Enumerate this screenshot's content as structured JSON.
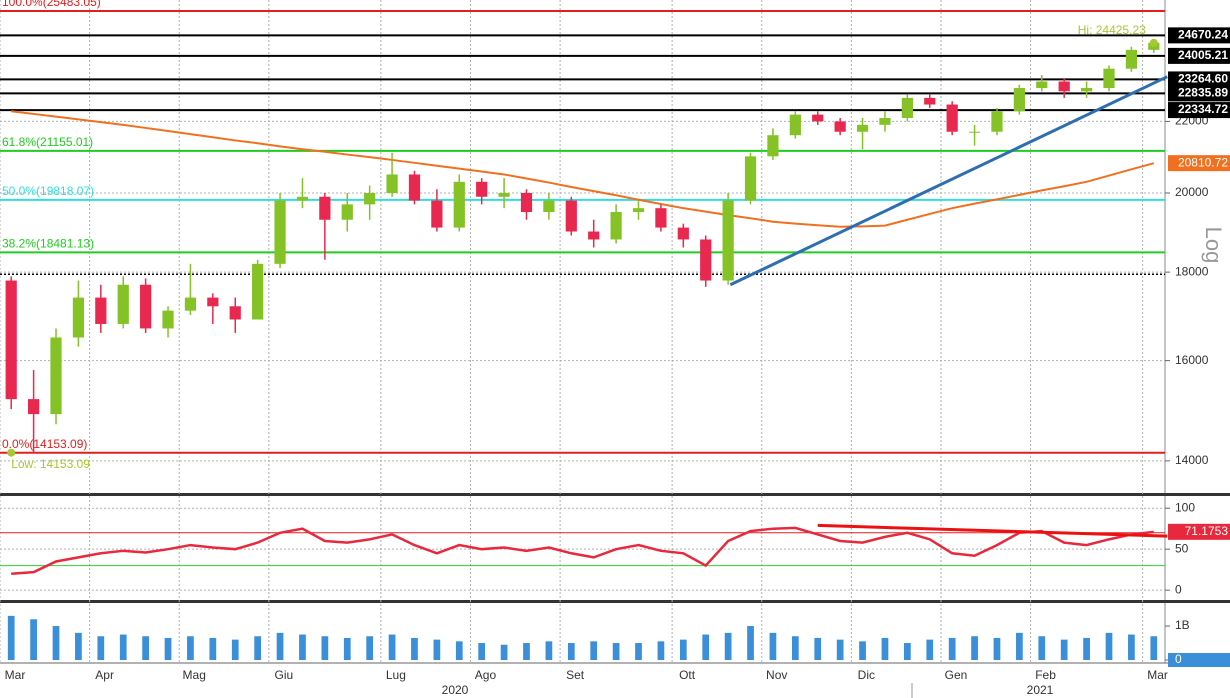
{
  "chart_data": [
    {
      "type": "candlestick",
      "log_scale": true,
      "grid": true,
      "axis_label": "Log",
      "up_color": "#84c225",
      "down_color": "#e8284f",
      "open": [
        17800,
        15200,
        14900,
        16500,
        17400,
        16800,
        17700,
        16700,
        17100,
        17400,
        17200,
        16900,
        18200,
        19800,
        19900,
        19300,
        19700,
        20000,
        20500,
        19800,
        19100,
        20300,
        19900,
        20000,
        19500,
        19800,
        19000,
        18800,
        19500,
        19600,
        19100,
        18800,
        17800,
        19800,
        21000,
        21600,
        22200,
        22000,
        21700,
        21900,
        22100,
        22700,
        22500,
        21700,
        21700,
        22300,
        23000,
        23200,
        22900,
        23000,
        23600,
        24200
      ],
      "high": [
        17900,
        15800,
        16700,
        17800,
        17700,
        17900,
        17850,
        17200,
        18200,
        17500,
        17400,
        18300,
        20000,
        20400,
        20000,
        20000,
        20200,
        21100,
        20600,
        20100,
        20500,
        20400,
        20400,
        20100,
        20000,
        19900,
        19300,
        19700,
        19800,
        19700,
        19200,
        18900,
        20000,
        21100,
        21800,
        22300,
        22300,
        22100,
        22100,
        22300,
        22800,
        22800,
        22600,
        21900,
        22400,
        23100,
        23400,
        23300,
        23200,
        23700,
        24300,
        24450
      ],
      "low": [
        15000,
        14153,
        14700,
        16300,
        16600,
        16700,
        16600,
        16500,
        17000,
        16800,
        16600,
        16900,
        18100,
        19600,
        18300,
        19000,
        19300,
        19900,
        19700,
        19000,
        19000,
        19700,
        19600,
        19300,
        19300,
        18900,
        18600,
        18700,
        19300,
        19000,
        18600,
        17650,
        17700,
        19700,
        20900,
        21500,
        21900,
        21600,
        21200,
        21700,
        22000,
        22400,
        21600,
        21300,
        21600,
        22200,
        22900,
        22700,
        22700,
        22900,
        23500,
        24100
      ],
      "close": [
        15200,
        14900,
        16500,
        17400,
        16800,
        17700,
        16700,
        17100,
        17400,
        17200,
        16900,
        18200,
        19800,
        19900,
        19300,
        19700,
        20000,
        20500,
        19800,
        19100,
        20300,
        19900,
        20000,
        19500,
        19800,
        19000,
        18800,
        19500,
        19600,
        19100,
        18800,
        17800,
        19800,
        21000,
        21600,
        22200,
        22000,
        21700,
        21900,
        22100,
        22700,
        22500,
        21700,
        21700,
        22300,
        23000,
        23200,
        22900,
        23000,
        23600,
        24200,
        24425
      ],
      "ylim": [
        13414,
        25860
      ],
      "yticks": [
        14000,
        16000,
        18000,
        20000,
        22000
      ],
      "levels": [
        {
          "value": 25483.05,
          "label": "100.0%(25483.05)",
          "color": "#e02020",
          "label_side": "left"
        },
        {
          "value": 24670.24,
          "label": "24670.24",
          "color": "#000000",
          "label_side": "right"
        },
        {
          "value": 24005.21,
          "label": "24005.21",
          "color": "#000000",
          "label_side": "right"
        },
        {
          "value": 23264.6,
          "label": "23264.60",
          "color": "#000000",
          "label_side": "right"
        },
        {
          "value": 22835.89,
          "label": "22835.89",
          "color": "#000000",
          "label_side": "right"
        },
        {
          "value": 22334.72,
          "label": "22334.72",
          "color": "#000000",
          "label_side": "right"
        },
        {
          "value": 21155.01,
          "label": "61.8%(21155.01)",
          "color": "#20cc20",
          "label_side": "left"
        },
        {
          "value": 19818.07,
          "label": "50.0%(19818.07)",
          "color": "#30dede",
          "label_side": "left"
        },
        {
          "value": 18481.13,
          "label": "38.2%(18481.13)",
          "color": "#20cc20",
          "label_side": "left"
        },
        {
          "value": 17950,
          "color": "#000000",
          "dashed": true
        },
        {
          "value": 14153.09,
          "label": "0.0%(14153.09)",
          "color": "#e02020",
          "label_side": "left"
        }
      ],
      "moving_average": {
        "color": "#f07020",
        "values": [
          22300,
          22220,
          22140,
          22060,
          21980,
          21900,
          21810,
          21720,
          21630,
          21540,
          21450,
          21370,
          21280,
          21200,
          21130,
          21050,
          20980,
          20900,
          20820,
          20740,
          20660,
          20580,
          20500,
          20390,
          20280,
          20160,
          20050,
          19940,
          19820,
          19710,
          19600,
          19510,
          19420,
          19340,
          19250,
          19200,
          19160,
          19120,
          19130,
          19150,
          19300,
          19450,
          19600,
          19720,
          19830,
          19950,
          20070,
          20180,
          20300,
          20470,
          20640,
          20810.72
        ],
        "value_label": {
          "value": 20810.72,
          "label": "20810.72"
        }
      },
      "trendline": {
        "color": "#2e6eb0",
        "points": [
          [
            32.1,
            17700
          ],
          [
            51.6,
            23350
          ]
        ]
      },
      "annotations": [
        {
          "text": "Hi: 24425.23",
          "value": 24425.23,
          "x": 51
        },
        {
          "text": "Low: 14153.09",
          "value": 14153.09,
          "x": 0
        }
      ]
    },
    {
      "type": "line",
      "color": "#e8283c",
      "values": [
        20,
        22,
        35,
        40,
        45,
        48,
        46,
        50,
        55,
        52,
        50,
        58,
        70,
        75,
        60,
        58,
        62,
        68,
        55,
        45,
        55,
        50,
        52,
        48,
        52,
        45,
        40,
        50,
        55,
        48,
        45,
        30,
        60,
        72,
        75,
        76,
        68,
        60,
        58,
        65,
        70,
        62,
        45,
        42,
        55,
        70,
        72,
        58,
        55,
        62,
        68,
        71.1753
      ],
      "ylim": [
        -12,
        110
      ],
      "yticks": [
        0,
        50,
        100
      ],
      "levels": [
        {
          "value": 70,
          "color": "#e02020"
        },
        {
          "value": 30,
          "color": "#30d030"
        }
      ],
      "value_label": {
        "value": 71.1753,
        "label": "71.1753"
      },
      "trendline": {
        "color": "#ee1010",
        "points": [
          [
            36,
            79
          ],
          [
            51.6,
            66
          ]
        ]
      }
    },
    {
      "type": "bar",
      "color": "#3a8fd8",
      "categories": [
        "Mar",
        null,
        null,
        null,
        "Apr",
        null,
        null,
        null,
        "Mag",
        null,
        null,
        null,
        "Giu",
        null,
        null,
        null,
        null,
        "Lug",
        null,
        null,
        null,
        "Ago",
        null,
        null,
        null,
        "Set",
        null,
        null,
        null,
        null,
        "Ott",
        null,
        null,
        null,
        "Nov",
        null,
        null,
        null,
        "Dic",
        null,
        null,
        null,
        "Gen",
        null,
        null,
        null,
        "Feb",
        null,
        null,
        null,
        null,
        "Mar"
      ],
      "years": [
        "2020",
        "2021"
      ],
      "values": [
        1300000000,
        1200000000,
        1000000000,
        800000000,
        700000000,
        750000000,
        700000000,
        650000000,
        700000000,
        650000000,
        600000000,
        700000000,
        800000000,
        750000000,
        700000000,
        650000000,
        700000000,
        750000000,
        650000000,
        600000000,
        550000000,
        500000000,
        450000000,
        500000000,
        550000000,
        500000000,
        550000000,
        500000000,
        500000000,
        550000000,
        600000000,
        750000000,
        800000000,
        1000000000,
        800000000,
        700000000,
        650000000,
        600000000,
        550000000,
        650000000,
        500000000,
        600000000,
        650000000,
        700000000,
        650000000,
        800000000,
        700000000,
        600000000,
        650000000,
        800000000,
        750000000,
        700000000
      ],
      "ylim": [
        -88000000,
        1620000000
      ],
      "yticks": [
        0,
        {
          "value": 1000000000,
          "label": "1B"
        }
      ]
    }
  ]
}
